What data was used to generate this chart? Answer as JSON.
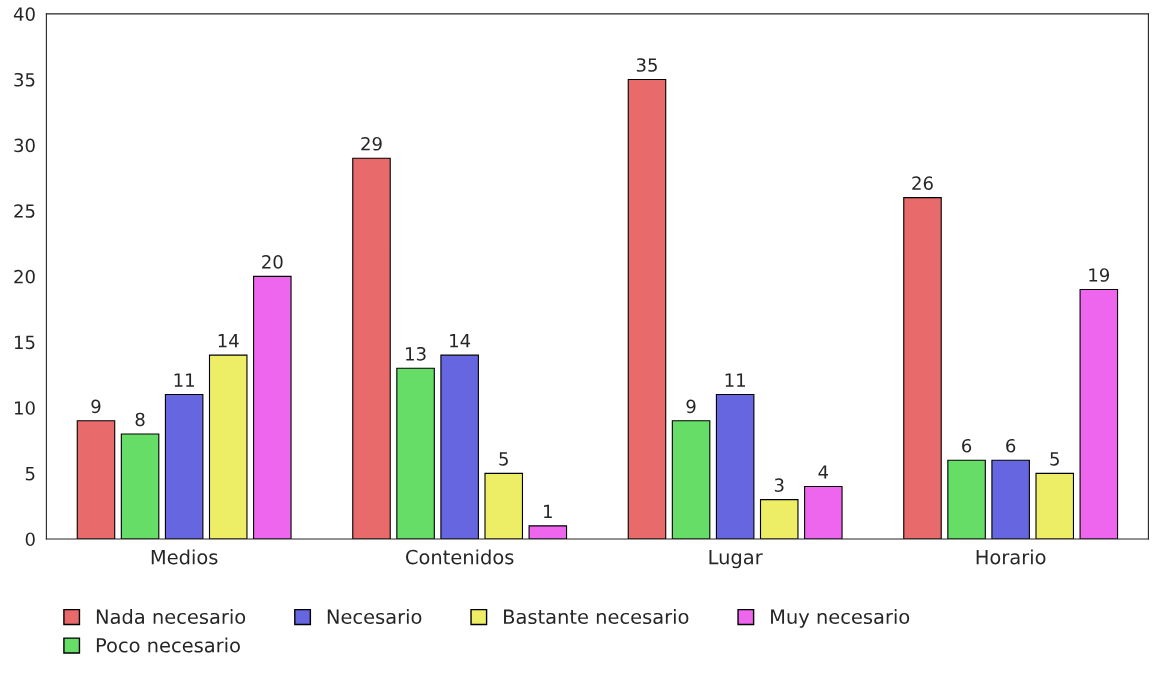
{
  "chart_data": {
    "type": "bar",
    "categories": [
      "Medios",
      "Contenidos",
      "Lugar",
      "Horario"
    ],
    "series": [
      {
        "name": "Nada necesario",
        "color": "#e86a6a",
        "values": [
          9,
          29,
          35,
          26
        ]
      },
      {
        "name": "Poco necesario",
        "color": "#66dd66",
        "values": [
          8,
          13,
          9,
          6
        ]
      },
      {
        "name": "Necesario",
        "color": "#6666e0",
        "values": [
          11,
          14,
          11,
          6
        ]
      },
      {
        "name": "Bastante necesario",
        "color": "#eeee66",
        "values": [
          14,
          5,
          3,
          5
        ]
      },
      {
        "name": "Muy necesario",
        "color": "#ee66ee",
        "values": [
          20,
          1,
          4,
          19
        ]
      }
    ],
    "ylim": [
      0,
      40
    ],
    "yticks": [
      0,
      5,
      10,
      15,
      20,
      25,
      30,
      35,
      40
    ],
    "data_labels": true,
    "legend": "bottom",
    "grid": false
  }
}
